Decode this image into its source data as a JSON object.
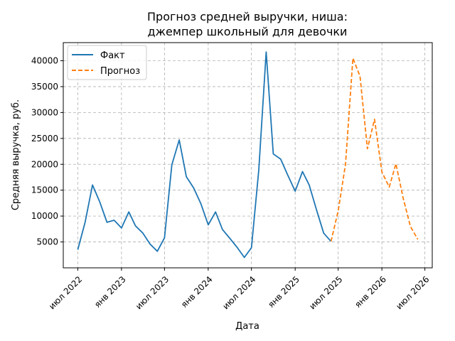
{
  "chart_data": {
    "type": "line",
    "title_line1": "Прогноз средней выручки, ниша:",
    "title_line2": "джемпер школьный для девочки",
    "xlabel": "Дата",
    "ylabel": "Средняя выручка, руб.",
    "x_tick_labels": [
      "июл 2022",
      "янв 2023",
      "июл 2023",
      "янв 2024",
      "июл 2024",
      "янв 2025",
      "июл 2025",
      "янв 2026",
      "июл 2026"
    ],
    "y_ticks": [
      5000,
      10000,
      15000,
      20000,
      25000,
      30000,
      35000,
      40000
    ],
    "y_tick_labels": [
      "5000",
      "10000",
      "15000",
      "20000",
      "25000",
      "30000",
      "35000",
      "40000"
    ],
    "ylim": [
      0,
      43500
    ],
    "xlim": [
      "2022-05-01",
      "2026-08-01"
    ],
    "grid": true,
    "legend_position": "top-left",
    "series": [
      {
        "name": "Факт",
        "color": "#1f77b4",
        "style": "solid",
        "points": [
          [
            "2022-07-01",
            3500
          ],
          [
            "2022-08-01",
            8800
          ],
          [
            "2022-09-01",
            16000
          ],
          [
            "2022-10-01",
            12800
          ],
          [
            "2022-11-01",
            8800
          ],
          [
            "2022-12-01",
            9200
          ],
          [
            "2023-01-01",
            7700
          ],
          [
            "2023-02-01",
            10800
          ],
          [
            "2023-03-01",
            8100
          ],
          [
            "2023-04-01",
            6700
          ],
          [
            "2023-05-01",
            4600
          ],
          [
            "2023-06-01",
            3200
          ],
          [
            "2023-07-01",
            5800
          ],
          [
            "2023-08-01",
            19900
          ],
          [
            "2023-09-01",
            24700
          ],
          [
            "2023-10-01",
            17600
          ],
          [
            "2023-11-01",
            15400
          ],
          [
            "2023-12-01",
            12400
          ],
          [
            "2024-01-01",
            8300
          ],
          [
            "2024-02-01",
            10800
          ],
          [
            "2024-03-01",
            7400
          ],
          [
            "2024-04-01",
            5700
          ],
          [
            "2024-05-01",
            4000
          ],
          [
            "2024-06-01",
            2000
          ],
          [
            "2024-07-01",
            3900
          ],
          [
            "2024-08-01",
            18900
          ],
          [
            "2024-09-01",
            41700
          ],
          [
            "2024-10-01",
            22000
          ],
          [
            "2024-11-01",
            21000
          ],
          [
            "2024-12-01",
            17900
          ],
          [
            "2025-01-01",
            14800
          ],
          [
            "2025-02-01",
            18600
          ],
          [
            "2025-03-01",
            16000
          ],
          [
            "2025-04-01",
            11200
          ],
          [
            "2025-05-01",
            6700
          ],
          [
            "2025-06-01",
            5100
          ]
        ]
      },
      {
        "name": "Прогноз",
        "color": "#ff7f0e",
        "style": "dashed",
        "points": [
          [
            "2025-06-01",
            5100
          ],
          [
            "2025-07-01",
            11000
          ],
          [
            "2025-08-01",
            20000
          ],
          [
            "2025-09-01",
            40500
          ],
          [
            "2025-10-01",
            37000
          ],
          [
            "2025-11-01",
            23000
          ],
          [
            "2025-12-01",
            28700
          ],
          [
            "2026-01-01",
            18500
          ],
          [
            "2026-02-01",
            15600
          ],
          [
            "2026-03-01",
            20100
          ],
          [
            "2026-04-01",
            13400
          ],
          [
            "2026-05-01",
            8000
          ],
          [
            "2026-06-01",
            5500
          ]
        ]
      }
    ]
  }
}
